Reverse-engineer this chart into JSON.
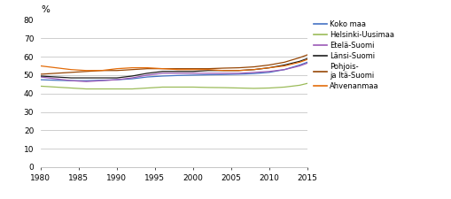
{
  "ylabel": "%",
  "xlim": [
    1980,
    2015
  ],
  "ylim": [
    0,
    80
  ],
  "yticks": [
    0,
    10,
    20,
    30,
    40,
    50,
    60,
    70,
    80
  ],
  "xticks": [
    1980,
    1985,
    1990,
    1995,
    2000,
    2005,
    2010,
    2015
  ],
  "years": [
    1980,
    1982,
    1984,
    1986,
    1988,
    1990,
    1992,
    1994,
    1996,
    1998,
    2000,
    2002,
    2004,
    2006,
    2008,
    2010,
    2012,
    2014,
    2015
  ],
  "series": {
    "Koko maa": {
      "color": "#4472C4",
      "values": [
        47.5,
        47.2,
        47.0,
        47.0,
        47.2,
        47.5,
        48.0,
        49.0,
        49.5,
        49.8,
        50.0,
        50.2,
        50.3,
        50.5,
        50.8,
        51.5,
        53.0,
        55.5,
        57.0
      ]
    },
    "Helsinki-Uusimaa": {
      "color": "#9BBB59",
      "values": [
        44.0,
        43.5,
        43.0,
        42.5,
        42.5,
        42.5,
        42.5,
        43.0,
        43.5,
        43.5,
        43.5,
        43.3,
        43.2,
        43.0,
        42.8,
        43.0,
        43.5,
        44.5,
        45.5
      ]
    },
    "Etelä-Suomi": {
      "color": "#9B59B6",
      "values": [
        49.0,
        48.0,
        47.0,
        46.5,
        47.0,
        47.5,
        48.5,
        50.0,
        51.0,
        51.0,
        51.0,
        51.0,
        51.0,
        51.0,
        51.5,
        52.0,
        53.0,
        55.0,
        56.5
      ]
    },
    "Länsi-Suomi": {
      "color": "#1C1C1C",
      "values": [
        49.5,
        49.0,
        48.5,
        48.5,
        48.5,
        48.5,
        49.5,
        51.0,
        52.0,
        52.0,
        52.0,
        52.5,
        52.5,
        52.5,
        53.0,
        54.0,
        55.5,
        57.5,
        59.0
      ]
    },
    "Pohjois- ja Itä-Suomi": {
      "color": "#974706",
      "values": [
        50.5,
        51.0,
        51.5,
        52.0,
        52.5,
        52.5,
        53.0,
        53.5,
        53.5,
        53.5,
        53.5,
        53.5,
        53.8,
        54.0,
        54.5,
        55.5,
        57.0,
        59.5,
        61.0
      ]
    },
    "Ahvenanmaa": {
      "color": "#E36C09",
      "values": [
        55.0,
        54.0,
        53.0,
        52.5,
        52.5,
        53.5,
        54.0,
        54.0,
        53.5,
        53.0,
        53.0,
        53.0,
        52.5,
        52.5,
        53.0,
        54.0,
        55.0,
        57.0,
        58.5
      ]
    }
  },
  "legend_labels": [
    "Koko maa",
    "Helsinki-Uusimaa",
    "Etelä-Suomi",
    "Länsi-Suomi",
    "Pohjois-\nja Itä-Suomi",
    "Ahvenanmaa"
  ],
  "series_keys": [
    "Koko maa",
    "Helsinki-Uusimaa",
    "Etelä-Suomi",
    "Länsi-Suomi",
    "Pohjois- ja Itä-Suomi",
    "Ahvenanmaa"
  ]
}
